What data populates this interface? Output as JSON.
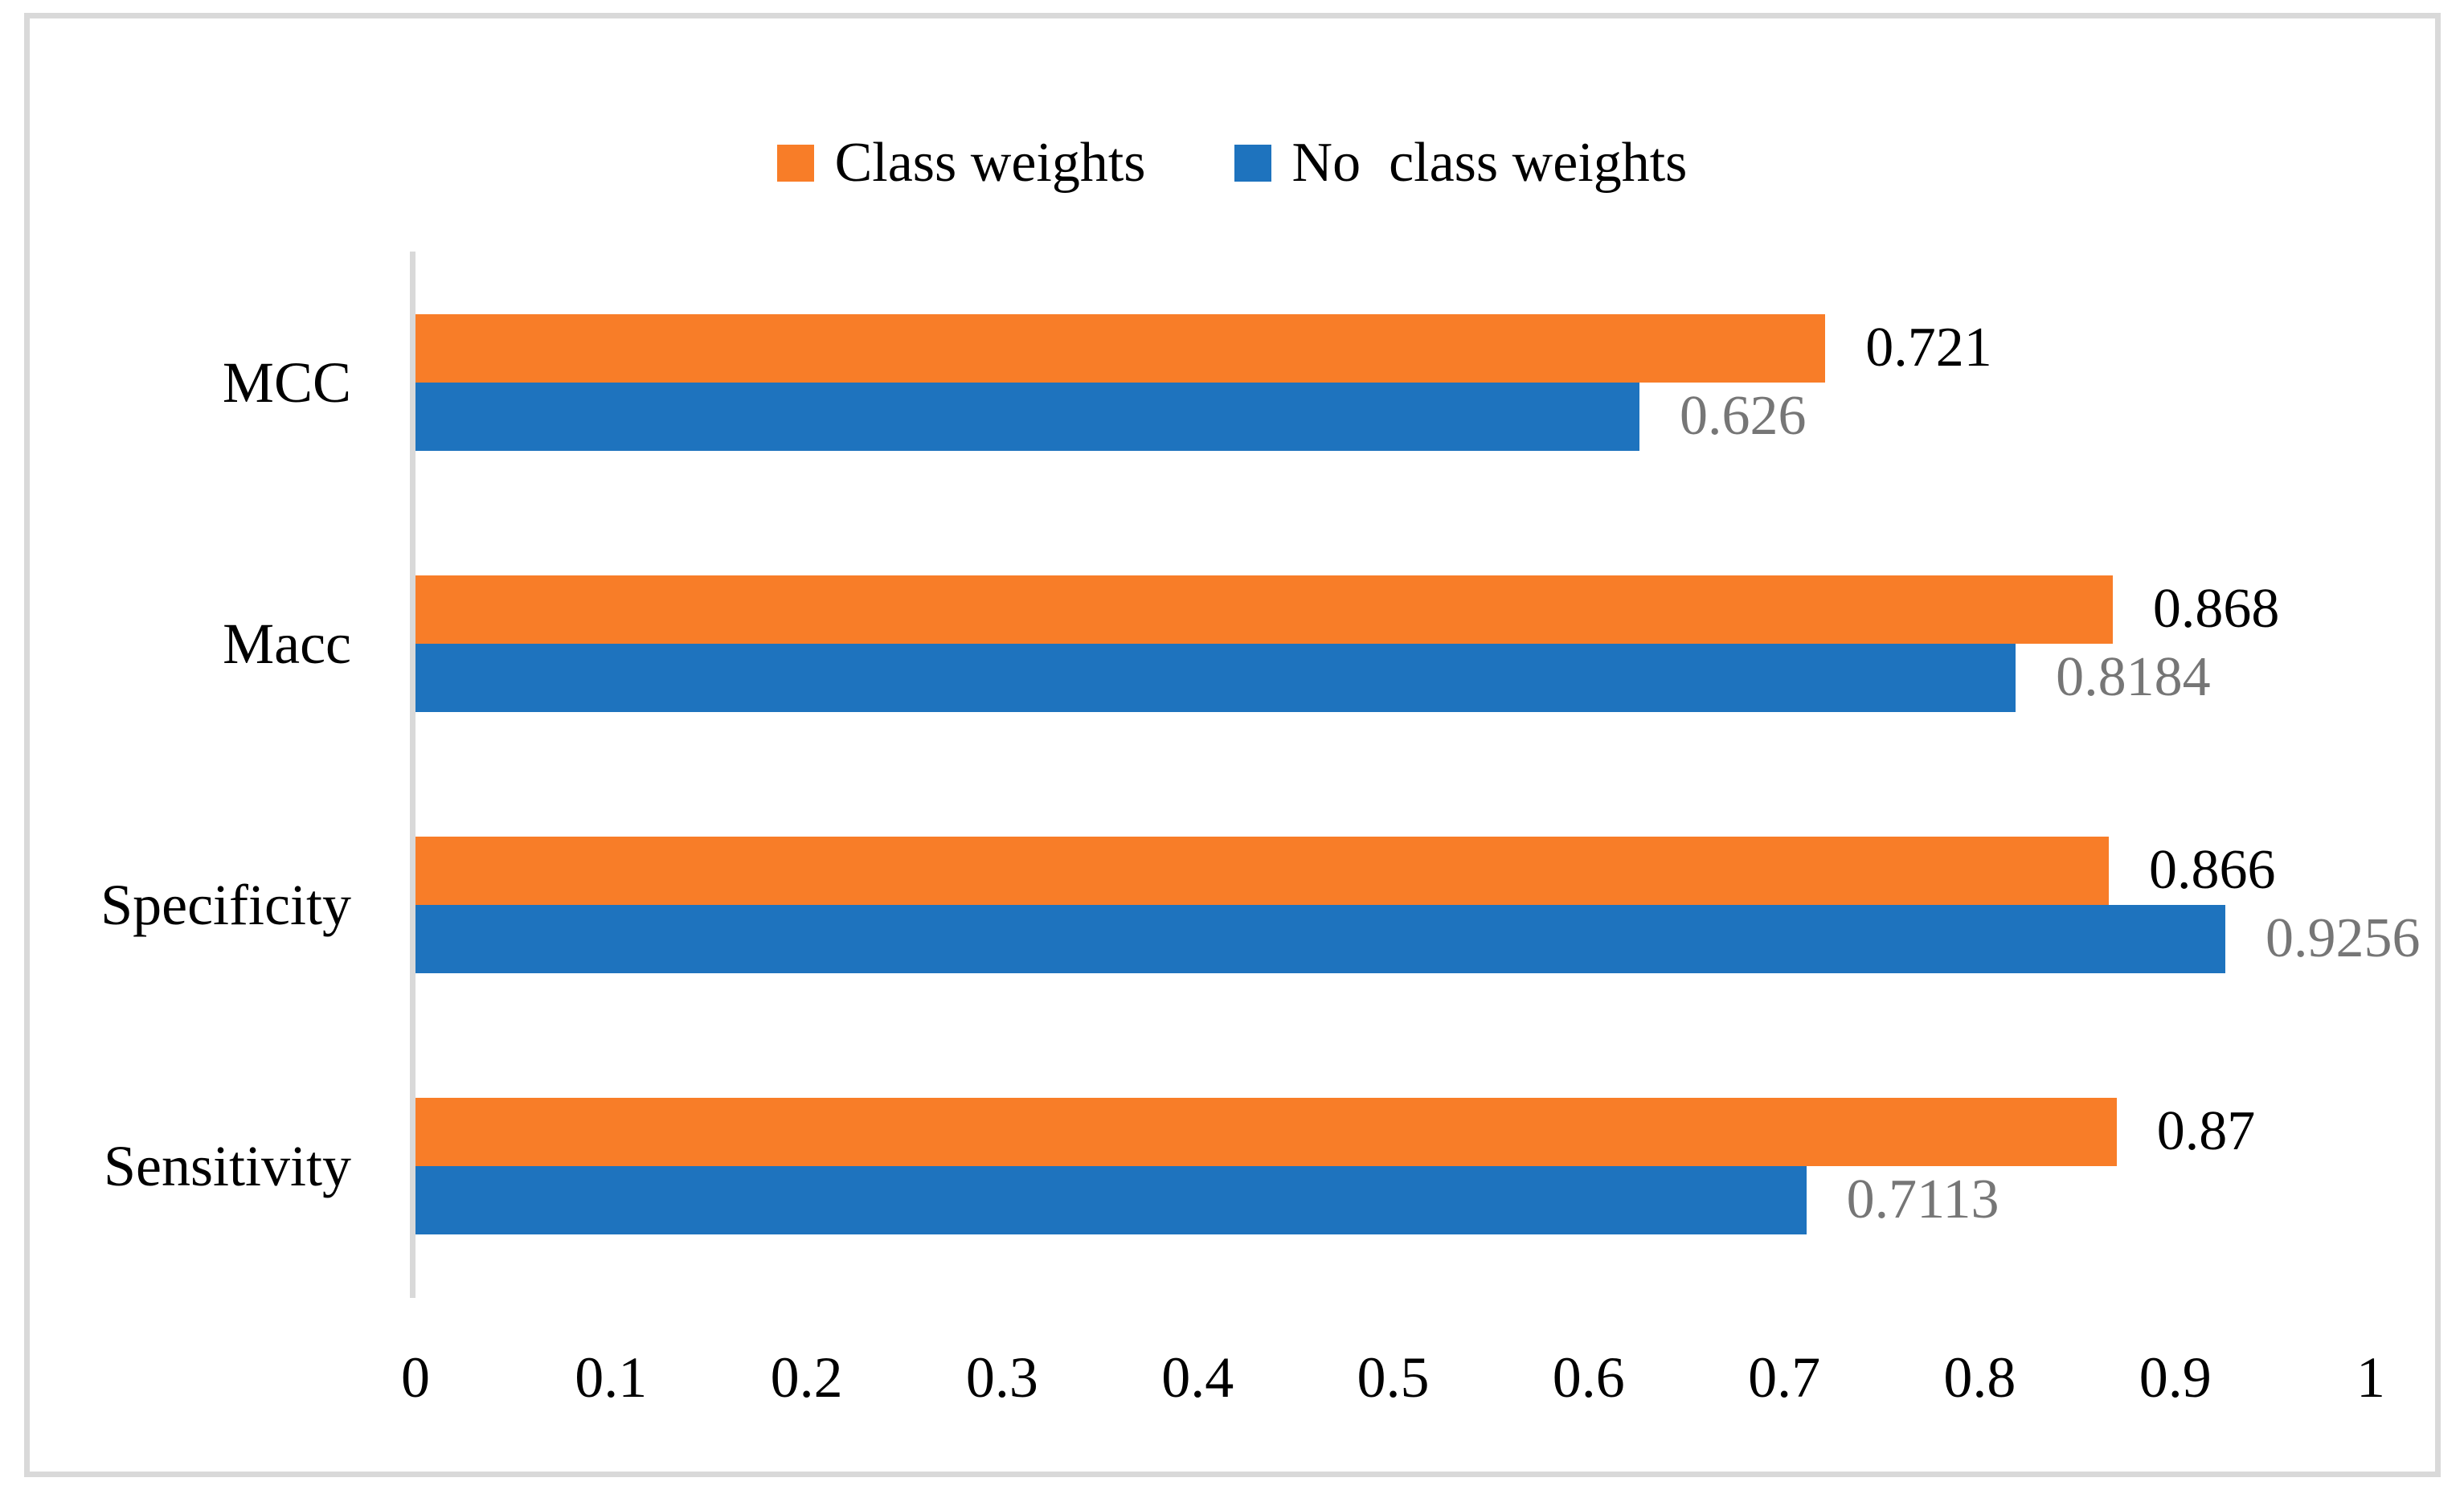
{
  "figure": {
    "background": "#FFFFFF",
    "border_color": "#D9D9D9",
    "axis_line_color": "#D9D9D9"
  },
  "legend": {
    "position": "top-center",
    "items": [
      {
        "label": "Class weights",
        "color": "#F87D28"
      },
      {
        "label": "No  class weights",
        "color": "#1E73BE"
      }
    ]
  },
  "chart_data": {
    "type": "bar",
    "orientation": "horizontal",
    "title": "",
    "xlabel": "",
    "ylabel": "",
    "grid": false,
    "legend_position": "top",
    "categories": [
      "MCC",
      "Macc",
      "Specificity",
      "Sensitivity"
    ],
    "series": [
      {
        "name": "Class weights",
        "color": "#F87D28",
        "values": [
          0.721,
          0.868,
          0.866,
          0.87
        ],
        "data_labels": [
          "0.721",
          "0.868",
          "0.866",
          "0.87"
        ],
        "data_label_color": "#000000"
      },
      {
        "name": "No  class weights",
        "color": "#1E73BE",
        "values": [
          0.626,
          0.8184,
          0.9256,
          0.7113
        ],
        "data_labels": [
          "0.626",
          "0.8184",
          "0.9256",
          "0.7113"
        ],
        "data_label_color": "#767676"
      }
    ],
    "xlim": [
      0,
      1
    ],
    "xticks": [
      "0",
      "0.1",
      "0.2",
      "0.3",
      "0.4",
      "0.5",
      "0.6",
      "0.7",
      "0.8",
      "0.9",
      "1"
    ]
  }
}
